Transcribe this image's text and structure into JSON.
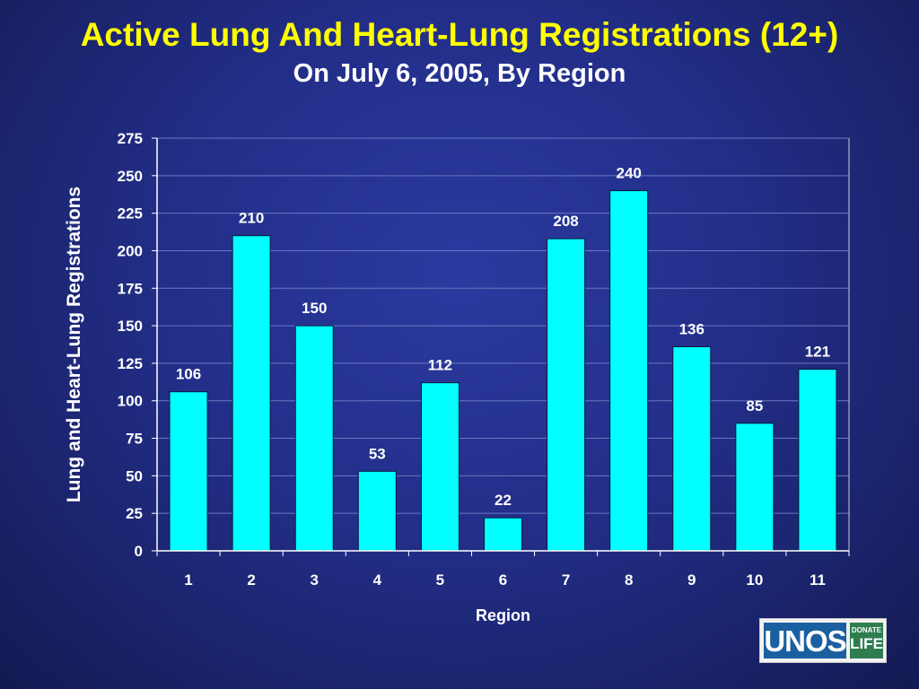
{
  "slide": {
    "title": "Active Lung And Heart-Lung Registrations (12+)",
    "subtitle": "On July 6, 2005, By Region"
  },
  "logo": {
    "main": "UNOS",
    "line1": "DONATE",
    "line2": "LIFE"
  },
  "colors": {
    "bar": "#00ffff",
    "title": "#ffff00",
    "text": "#ffffff",
    "grid": "#6a78c2"
  },
  "chart_data": {
    "type": "bar",
    "categories": [
      "1",
      "2",
      "3",
      "4",
      "5",
      "6",
      "7",
      "8",
      "9",
      "10",
      "11"
    ],
    "values": [
      106,
      210,
      150,
      53,
      112,
      22,
      208,
      240,
      136,
      85,
      121
    ],
    "xlabel": "Region",
    "ylabel": "Lung and Heart-Lung Registrations",
    "ylim": [
      0,
      275
    ],
    "yticks": [
      0,
      25,
      50,
      75,
      100,
      125,
      150,
      175,
      200,
      225,
      250,
      275
    ],
    "grid": true,
    "data_labels": true
  }
}
